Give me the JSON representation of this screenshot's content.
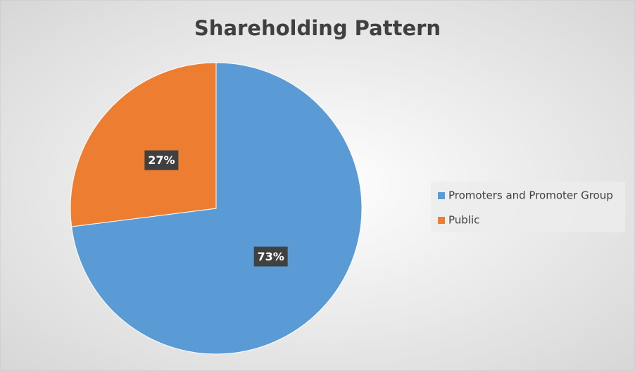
{
  "chart_data": {
    "type": "pie",
    "title": "Shareholding Pattern",
    "categories": [
      "Promoters and Promoter Group",
      "Public"
    ],
    "values": [
      73,
      27
    ],
    "value_labels": [
      "73%",
      "27%"
    ],
    "colors": [
      "#5b9bd5",
      "#ed7d31"
    ],
    "legend": "right"
  }
}
